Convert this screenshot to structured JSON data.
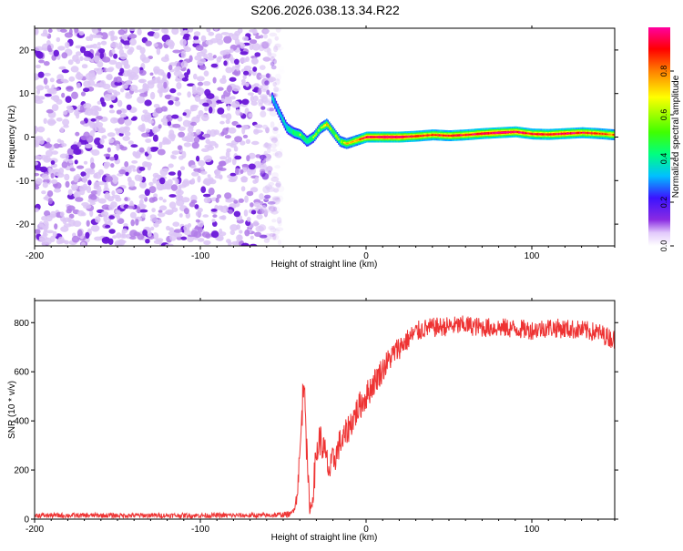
{
  "title": "S206.2026.038.13.34.R22",
  "chart_data": [
    {
      "type": "heatmap",
      "xlabel": "Height of straight line (km)",
      "ylabel": "Frequency (Hz)",
      "xlim": [
        -200,
        150
      ],
      "ylim": [
        -25,
        25
      ],
      "xticks": [
        -200,
        -100,
        0,
        100
      ],
      "yticks": [
        -20,
        -10,
        0,
        10,
        20
      ],
      "colorbar": {
        "label": "Normalized spectral amplitude",
        "range": [
          0,
          1
        ],
        "ticks": [
          0.0,
          0.2,
          0.4,
          0.6,
          0.8
        ],
        "colormap": [
          "#ffffff",
          "#e2c9fb",
          "#8a2be2",
          "#3b13ff",
          "#00c0ff",
          "#00ff80",
          "#40ff00",
          "#ffff00",
          "#ff8000",
          "#ff0000",
          "#ff00a0"
        ]
      },
      "noise_region": {
        "x_from": -200,
        "x_to": -55,
        "freq_from": -25,
        "freq_to": 25
      },
      "ridge": {
        "x": [
          -57,
          -52,
          -48,
          -44,
          -40,
          -36,
          -32,
          -28,
          -24,
          -20,
          -16,
          -12,
          -8,
          -4,
          0,
          10,
          20,
          30,
          40,
          50,
          60,
          70,
          80,
          90,
          100,
          110,
          120,
          130,
          140,
          150
        ],
        "freq": [
          9,
          5,
          2,
          1,
          0.5,
          -1,
          0,
          2,
          3,
          1,
          -1,
          -1.5,
          -1,
          -0.5,
          0,
          0,
          0,
          0.2,
          0.5,
          0.3,
          0.5,
          0.8,
          1,
          1.2,
          0.7,
          0.6,
          0.8,
          1,
          0.8,
          0.5
        ],
        "amplitude": [
          0.3,
          0.35,
          0.4,
          0.45,
          0.5,
          0.45,
          0.5,
          0.55,
          0.6,
          0.55,
          0.5,
          0.6,
          0.65,
          0.7,
          0.85,
          0.9,
          0.9,
          0.8,
          0.75,
          0.8,
          0.8,
          0.85,
          0.9,
          0.85,
          0.8,
          0.8,
          0.85,
          0.8,
          0.75,
          0.7
        ]
      }
    },
    {
      "type": "line",
      "xlabel": "Height of straight line (km)",
      "ylabel": "SNR (10 * v/v)",
      "xlim": [
        -200,
        150
      ],
      "ylim": [
        0,
        890
      ],
      "xticks": [
        -200,
        -100,
        0,
        100
      ],
      "yticks": [
        0,
        200,
        400,
        600,
        800
      ],
      "color": "#ee3333",
      "series": [
        {
          "x": [
            -200,
            -60,
            -45,
            -42,
            -40,
            -38,
            -37,
            -36,
            -35,
            -34,
            -33,
            -32,
            -30,
            -28,
            -25,
            -22,
            -20,
            -18,
            -16,
            -14,
            -12,
            -10,
            -7,
            -4,
            0,
            5,
            10,
            15,
            20,
            25,
            30,
            35,
            40,
            50,
            60,
            70,
            80,
            90,
            100,
            110,
            120,
            130,
            140,
            150
          ],
          "y": [
            15,
            15,
            20,
            80,
            250,
            520,
            590,
            300,
            150,
            60,
            40,
            120,
            260,
            330,
            270,
            190,
            240,
            260,
            310,
            320,
            350,
            380,
            420,
            460,
            500,
            560,
            610,
            660,
            700,
            730,
            760,
            775,
            780,
            785,
            790,
            780,
            780,
            775,
            770,
            780,
            775,
            770,
            760,
            730
          ],
          "noise_amplitude": [
            10,
            10,
            12,
            30,
            60,
            80,
            80,
            70,
            60,
            40,
            40,
            60,
            70,
            70,
            70,
            60,
            60,
            60,
            60,
            60,
            60,
            60,
            60,
            60,
            60,
            55,
            55,
            50,
            50,
            45,
            45,
            40,
            40,
            40,
            40,
            40,
            40,
            40,
            40,
            40,
            40,
            40,
            40,
            40
          ]
        }
      ]
    }
  ]
}
